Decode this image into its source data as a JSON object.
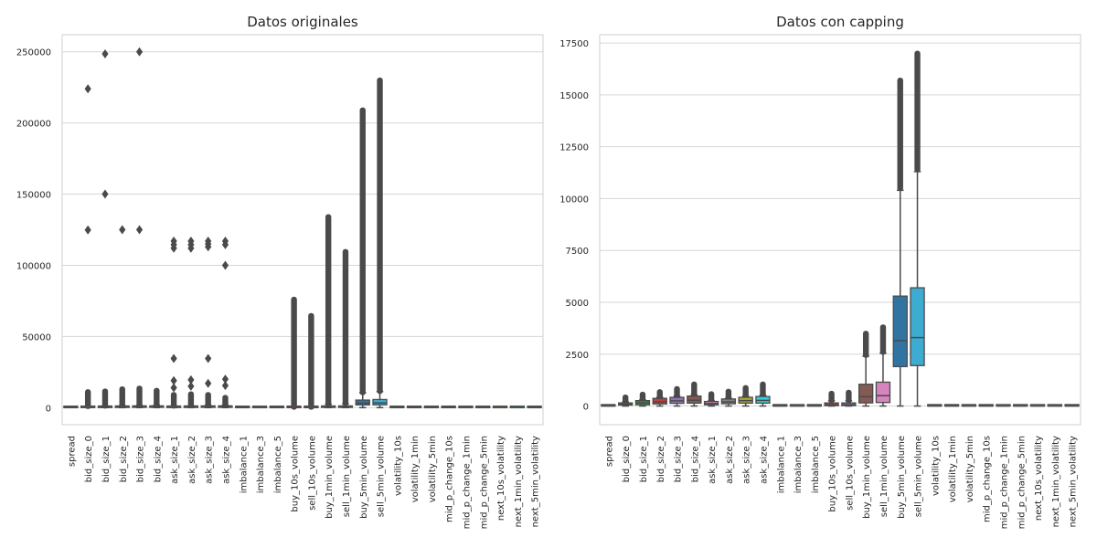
{
  "chart_data": [
    {
      "type": "box",
      "title": "Datos originales",
      "xlabel": "",
      "ylabel": "",
      "ylim": [
        -12000,
        262000
      ],
      "yticks": [
        0,
        50000,
        100000,
        150000,
        200000,
        250000
      ],
      "ytick_labels": [
        "0",
        "50000",
        "100000",
        "150000",
        "200000",
        "250000"
      ],
      "grid": true,
      "categories": [
        "spread",
        "bid_size_0",
        "bid_size_1",
        "bid_size_2",
        "bid_size_3",
        "bid_size_4",
        "ask_size_1",
        "ask_size_2",
        "ask_size_3",
        "ask_size_4",
        "imbalance_1",
        "imbalance_3",
        "imbalance_5",
        "buy_10s_volume",
        "sell_10s_volume",
        "buy_1min_volume",
        "sell_1min_volume",
        "buy_5min_volume",
        "sell_5min_volume",
        "volatility_10s",
        "volatility_1min",
        "volatility_5min",
        "mid_p_change_10s",
        "mid_p_change_1min",
        "mid_p_change_5min",
        "next_10s_volatility",
        "next_1min_volatility",
        "next_5min_volatility"
      ],
      "boxes": [
        {
          "q1": 0,
          "median": 0,
          "q3": 0,
          "whislo": 0,
          "whishi": 0,
          "color": "#3274a1",
          "fliers_dense": [],
          "fliers": []
        },
        {
          "q1": 50,
          "median": 150,
          "q3": 400,
          "whislo": 0,
          "whishi": 800,
          "color": "#e1812c",
          "fliers_dense": [
            [
              900,
              11000
            ]
          ],
          "fliers": [
            124800,
            224000
          ]
        },
        {
          "q1": 100,
          "median": 250,
          "q3": 550,
          "whislo": 0,
          "whishi": 1100,
          "color": "#3a923a",
          "fliers_dense": [
            [
              1200,
              11500
            ]
          ],
          "fliers": [
            150000,
            248500
          ]
        },
        {
          "q1": 150,
          "median": 300,
          "q3": 650,
          "whislo": 0,
          "whishi": 1300,
          "color": "#c03d3e",
          "fliers_dense": [
            [
              1400,
              13000
            ]
          ],
          "fliers": [
            125000
          ]
        },
        {
          "q1": 200,
          "median": 350,
          "q3": 800,
          "whislo": 0,
          "whishi": 1500,
          "color": "#9372b2",
          "fliers_dense": [
            [
              1600,
              13500
            ]
          ],
          "fliers": [
            125000,
            250000
          ]
        },
        {
          "q1": 200,
          "median": 400,
          "q3": 900,
          "whislo": 0,
          "whishi": 1700,
          "color": "#845b53",
          "fliers_dense": [
            [
              1800,
              12000
            ]
          ],
          "fliers": []
        },
        {
          "q1": 100,
          "median": 250,
          "q3": 550,
          "whislo": 0,
          "whishi": 1100,
          "color": "#d684bd",
          "fliers_dense": [
            [
              1200,
              9000
            ]
          ],
          "fliers": [
            14000,
            19000,
            34500,
            112000,
            114500,
            117000
          ]
        },
        {
          "q1": 150,
          "median": 300,
          "q3": 700,
          "whislo": 0,
          "whishi": 1300,
          "color": "#7f7f7f",
          "fliers_dense": [
            [
              1400,
              9500
            ]
          ],
          "fliers": [
            15000,
            19500,
            112000,
            114500,
            117000
          ]
        },
        {
          "q1": 200,
          "median": 350,
          "q3": 800,
          "whislo": 0,
          "whishi": 1500,
          "color": "#a9aa35",
          "fliers_dense": [
            [
              1600,
              9000
            ]
          ],
          "fliers": [
            17000,
            34500,
            113000,
            115000,
            117000
          ]
        },
        {
          "q1": 200,
          "median": 400,
          "q3": 900,
          "whislo": 0,
          "whishi": 1700,
          "color": "#2ed0df",
          "fliers_dense": [
            [
              1800,
              7000
            ]
          ],
          "fliers": [
            15500,
            20000,
            100000,
            114500,
            117000
          ]
        },
        {
          "q1": 0,
          "median": 0,
          "q3": 0,
          "whislo": 0,
          "whishi": 0,
          "color": "#3274a1",
          "fliers_dense": [],
          "fliers": []
        },
        {
          "q1": 0,
          "median": 0,
          "q3": 0,
          "whislo": 0,
          "whishi": 0,
          "color": "#e1812c",
          "fliers_dense": [],
          "fliers": []
        },
        {
          "q1": 0,
          "median": 0,
          "q3": 0,
          "whislo": 0,
          "whishi": 0,
          "color": "#3a923a",
          "fliers_dense": [],
          "fliers": []
        },
        {
          "q1": 20,
          "median": 60,
          "q3": 150,
          "whislo": 0,
          "whishi": 300,
          "color": "#c03d3e",
          "fliers_dense": [
            [
              400,
              76000
            ]
          ],
          "fliers": []
        },
        {
          "q1": 20,
          "median": 60,
          "q3": 150,
          "whislo": 0,
          "whishi": 300,
          "color": "#9372b2",
          "fliers_dense": [
            [
              400,
              64500
            ]
          ],
          "fliers": []
        },
        {
          "q1": 150,
          "median": 450,
          "q3": 1050,
          "whislo": 0,
          "whishi": 2400,
          "color": "#845b53",
          "fliers_dense": [
            [
              2600,
              134000
            ]
          ],
          "fliers": []
        },
        {
          "q1": 170,
          "median": 500,
          "q3": 1150,
          "whislo": 0,
          "whishi": 2700,
          "color": "#d684bd",
          "fliers_dense": [
            [
              2900,
              109500
            ]
          ],
          "fliers": []
        },
        {
          "q1": 1900,
          "median": 3150,
          "q3": 5300,
          "whislo": 0,
          "whishi": 10400,
          "color": "#3274a1",
          "fliers_dense": [
            [
              10600,
              209000
            ]
          ],
          "fliers": []
        },
        {
          "q1": 1950,
          "median": 3300,
          "q3": 5700,
          "whislo": 0,
          "whishi": 11300,
          "color": "#3eabd1",
          "fliers_dense": [
            [
              11500,
              230000
            ]
          ],
          "fliers": []
        },
        {
          "q1": 0,
          "median": 0,
          "q3": 0,
          "whislo": 0,
          "whishi": 0,
          "color": "#3a923a",
          "fliers_dense": [],
          "fliers": []
        },
        {
          "q1": 0,
          "median": 0,
          "q3": 0,
          "whislo": 0,
          "whishi": 0,
          "color": "#c03d3e",
          "fliers_dense": [],
          "fliers": []
        },
        {
          "q1": 0,
          "median": 0,
          "q3": 0,
          "whislo": 0,
          "whishi": 0,
          "color": "#9372b2",
          "fliers_dense": [],
          "fliers": []
        },
        {
          "q1": 0,
          "median": 0,
          "q3": 0,
          "whislo": 0,
          "whishi": 0,
          "color": "#845b53",
          "fliers_dense": [],
          "fliers": []
        },
        {
          "q1": 0,
          "median": 0,
          "q3": 0,
          "whislo": 0,
          "whishi": 0,
          "color": "#d684bd",
          "fliers_dense": [],
          "fliers": []
        },
        {
          "q1": 0,
          "median": 0,
          "q3": 0,
          "whislo": 0,
          "whishi": 0,
          "color": "#7f7f7f",
          "fliers_dense": [],
          "fliers": []
        },
        {
          "q1": 0,
          "median": 0,
          "q3": 0,
          "whislo": 0,
          "whishi": 0,
          "color": "#a9aa35",
          "fliers_dense": [],
          "fliers": []
        },
        {
          "q1": 0,
          "median": 0,
          "q3": 0,
          "whislo": 0,
          "whishi": 0,
          "color": "#2ed0df",
          "fliers_dense": [],
          "fliers": []
        },
        {
          "q1": 0,
          "median": 0,
          "q3": 0,
          "whislo": 0,
          "whishi": 0,
          "color": "#3274a1",
          "fliers_dense": [],
          "fliers": []
        }
      ]
    },
    {
      "type": "box",
      "title": "Datos con capping",
      "xlabel": "",
      "ylabel": "",
      "ylim": [
        -900,
        17900
      ],
      "yticks": [
        0,
        2500,
        5000,
        7500,
        10000,
        12500,
        15000,
        17500
      ],
      "ytick_labels": [
        "0",
        "2500",
        "5000",
        "7500",
        "10000",
        "12500",
        "15000",
        "17500"
      ],
      "grid": true,
      "categories": [
        "spread",
        "bid_size_0",
        "bid_size_1",
        "bid_size_2",
        "bid_size_3",
        "bid_size_4",
        "ask_size_1",
        "ask_size_2",
        "ask_size_3",
        "ask_size_4",
        "imbalance_1",
        "imbalance_3",
        "imbalance_5",
        "buy_10s_volume",
        "sell_10s_volume",
        "buy_1min_volume",
        "sell_1min_volume",
        "buy_5min_volume",
        "sell_5min_volume",
        "volatility_10s",
        "volatility_1min",
        "volatility_5min",
        "mid_p_change_10s",
        "mid_p_change_1min",
        "mid_p_change_5min",
        "next_10s_volatility",
        "next_1min_volatility",
        "next_5min_volatility"
      ],
      "boxes": [
        {
          "q1": 0,
          "median": 0,
          "q3": 0,
          "whislo": 0,
          "whishi": 0,
          "color": "#3274a1",
          "fliers_dense": [],
          "fliers": []
        },
        {
          "q1": 50,
          "median": 90,
          "q3": 150,
          "whislo": 0,
          "whishi": 200,
          "color": "#e1812c",
          "fliers_dense": [
            [
              220,
              420
            ]
          ],
          "fliers": []
        },
        {
          "q1": 60,
          "median": 150,
          "q3": 260,
          "whislo": 0,
          "whishi": 300,
          "color": "#3a923a",
          "fliers_dense": [
            [
              320,
              560
            ]
          ],
          "fliers": []
        },
        {
          "q1": 100,
          "median": 200,
          "q3": 370,
          "whislo": 0,
          "whishi": 420,
          "color": "#c03d3e",
          "fliers_dense": [
            [
              440,
              680
            ]
          ],
          "fliers": []
        },
        {
          "q1": 130,
          "median": 250,
          "q3": 420,
          "whislo": 0,
          "whishi": 480,
          "color": "#9372b2",
          "fliers_dense": [
            [
              500,
              830
            ]
          ],
          "fliers": []
        },
        {
          "q1": 140,
          "median": 280,
          "q3": 480,
          "whislo": 0,
          "whishi": 540,
          "color": "#845b53",
          "fliers_dense": [
            [
              560,
              1050
            ]
          ],
          "fliers": []
        },
        {
          "q1": 60,
          "median": 120,
          "q3": 220,
          "whislo": 0,
          "whishi": 260,
          "color": "#d684bd",
          "fliers_dense": [
            [
              280,
              580
            ]
          ],
          "fliers": []
        },
        {
          "q1": 110,
          "median": 200,
          "q3": 340,
          "whislo": 0,
          "whishi": 380,
          "color": "#7f7f7f",
          "fliers_dense": [
            [
              400,
              700
            ]
          ],
          "fliers": []
        },
        {
          "q1": 140,
          "median": 260,
          "q3": 420,
          "whislo": 0,
          "whishi": 480,
          "color": "#a9aa35",
          "fliers_dense": [
            [
              500,
              880
            ]
          ],
          "fliers": []
        },
        {
          "q1": 140,
          "median": 270,
          "q3": 460,
          "whislo": 0,
          "whishi": 520,
          "color": "#2ed0df",
          "fliers_dense": [
            [
              540,
              1050
            ]
          ],
          "fliers": []
        },
        {
          "q1": 0,
          "median": 0,
          "q3": 0,
          "whislo": 0,
          "whishi": 0,
          "color": "#3274a1",
          "fliers_dense": [],
          "fliers": []
        },
        {
          "q1": 0,
          "median": 0,
          "q3": 0,
          "whislo": 0,
          "whishi": 0,
          "color": "#e1812c",
          "fliers_dense": [],
          "fliers": []
        },
        {
          "q1": 0,
          "median": 0,
          "q3": 0,
          "whislo": 0,
          "whishi": 0,
          "color": "#3a923a",
          "fliers_dense": [],
          "fliers": []
        },
        {
          "q1": 20,
          "median": 60,
          "q3": 150,
          "whislo": 0,
          "whishi": 250,
          "color": "#c03d3e",
          "fliers_dense": [
            [
              270,
              600
            ]
          ],
          "fliers": []
        },
        {
          "q1": 20,
          "median": 60,
          "q3": 150,
          "whislo": 0,
          "whishi": 250,
          "color": "#9372b2",
          "fliers_dense": [
            [
              270,
              650
            ]
          ],
          "fliers": []
        },
        {
          "q1": 150,
          "median": 450,
          "q3": 1050,
          "whislo": 0,
          "whishi": 2400,
          "color": "#845b53",
          "fliers_dense": [
            [
              2450,
              3500
            ]
          ],
          "fliers": []
        },
        {
          "q1": 170,
          "median": 500,
          "q3": 1150,
          "whislo": 0,
          "whishi": 2550,
          "color": "#d684bd",
          "fliers_dense": [
            [
              2600,
              3800
            ]
          ],
          "fliers": []
        },
        {
          "q1": 1900,
          "median": 3150,
          "q3": 5300,
          "whislo": 0,
          "whishi": 10400,
          "color": "#3274a1",
          "fliers_dense": [
            [
              10500,
              15700
            ]
          ],
          "fliers": []
        },
        {
          "q1": 1950,
          "median": 3300,
          "q3": 5700,
          "whislo": 0,
          "whishi": 11300,
          "color": "#3eabd1",
          "fliers_dense": [
            [
              11400,
              17000
            ]
          ],
          "fliers": []
        },
        {
          "q1": 0,
          "median": 0,
          "q3": 0,
          "whislo": 0,
          "whishi": 0,
          "color": "#3a923a",
          "fliers_dense": [],
          "fliers": []
        },
        {
          "q1": 0,
          "median": 0,
          "q3": 0,
          "whislo": 0,
          "whishi": 0,
          "color": "#c03d3e",
          "fliers_dense": [],
          "fliers": []
        },
        {
          "q1": 0,
          "median": 0,
          "q3": 0,
          "whislo": 0,
          "whishi": 0,
          "color": "#9372b2",
          "fliers_dense": [],
          "fliers": []
        },
        {
          "q1": 0,
          "median": 0,
          "q3": 0,
          "whislo": 0,
          "whishi": 0,
          "color": "#845b53",
          "fliers_dense": [],
          "fliers": []
        },
        {
          "q1": 0,
          "median": 0,
          "q3": 0,
          "whislo": 0,
          "whishi": 0,
          "color": "#d684bd",
          "fliers_dense": [],
          "fliers": []
        },
        {
          "q1": 0,
          "median": 0,
          "q3": 0,
          "whislo": 0,
          "whishi": 0,
          "color": "#7f7f7f",
          "fliers_dense": [],
          "fliers": []
        },
        {
          "q1": 0,
          "median": 0,
          "q3": 0,
          "whislo": 0,
          "whishi": 0,
          "color": "#a9aa35",
          "fliers_dense": [],
          "fliers": []
        },
        {
          "q1": 0,
          "median": 0,
          "q3": 0,
          "whislo": 0,
          "whishi": 0,
          "color": "#2ed0df",
          "fliers_dense": [],
          "fliers": []
        },
        {
          "q1": 0,
          "median": 0,
          "q3": 0,
          "whislo": 0,
          "whishi": 0,
          "color": "#3274a1",
          "fliers_dense": [],
          "fliers": []
        }
      ]
    }
  ]
}
